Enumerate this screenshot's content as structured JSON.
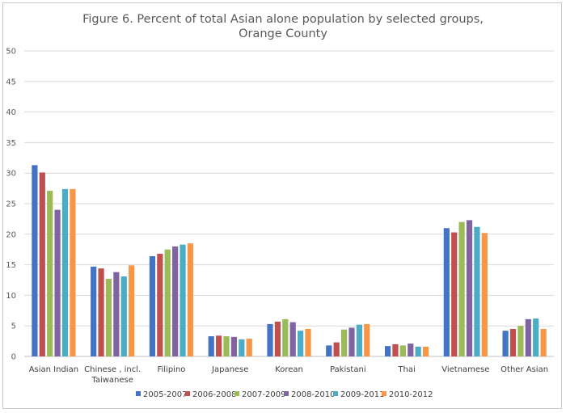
{
  "chart_data": {
    "type": "bar",
    "title_lines": [
      "Figure 6.  Percent of total Asian alone population by selected groups,",
      "Orange County"
    ],
    "categories": [
      [
        "Asian Indian"
      ],
      [
        "Chinese , incl.",
        "Taiwanese"
      ],
      [
        "Filipino"
      ],
      [
        "Japanese"
      ],
      [
        "Korean"
      ],
      [
        "Pakistani"
      ],
      [
        "Thai"
      ],
      [
        "Vietnamese"
      ],
      [
        "Other Asian"
      ]
    ],
    "ylim": [
      0,
      50
    ],
    "yticks": [
      "0",
      "5",
      "10",
      "15",
      "20",
      "25",
      "30",
      "35",
      "40",
      "45",
      "50"
    ],
    "grid": true,
    "legend_position": "bottom",
    "series": [
      {
        "name": "2005-2007",
        "color": "#4472c4",
        "values": [
          31.3,
          14.7,
          16.4,
          3.3,
          5.3,
          1.8,
          1.7,
          21.0,
          4.2
        ]
      },
      {
        "name": "2006-2008",
        "color": "#c0504d",
        "values": [
          30.1,
          14.4,
          16.8,
          3.4,
          5.7,
          2.3,
          2.0,
          20.3,
          4.5
        ]
      },
      {
        "name": "2007-2009",
        "color": "#9bbb59",
        "values": [
          27.1,
          12.7,
          17.5,
          3.3,
          6.1,
          4.4,
          1.8,
          22.0,
          5.0
        ]
      },
      {
        "name": "2008-2010",
        "color": "#8064a2",
        "values": [
          24.0,
          13.8,
          18.0,
          3.2,
          5.6,
          4.7,
          2.1,
          22.3,
          6.1
        ]
      },
      {
        "name": "2009-2011",
        "color": "#4bacc6",
        "values": [
          27.4,
          13.1,
          18.3,
          2.8,
          4.2,
          5.2,
          1.6,
          21.2,
          6.2
        ]
      },
      {
        "name": "2010-2012",
        "color": "#f79646",
        "values": [
          27.4,
          14.9,
          18.5,
          2.9,
          4.5,
          5.3,
          1.6,
          20.2,
          4.5
        ]
      }
    ]
  }
}
